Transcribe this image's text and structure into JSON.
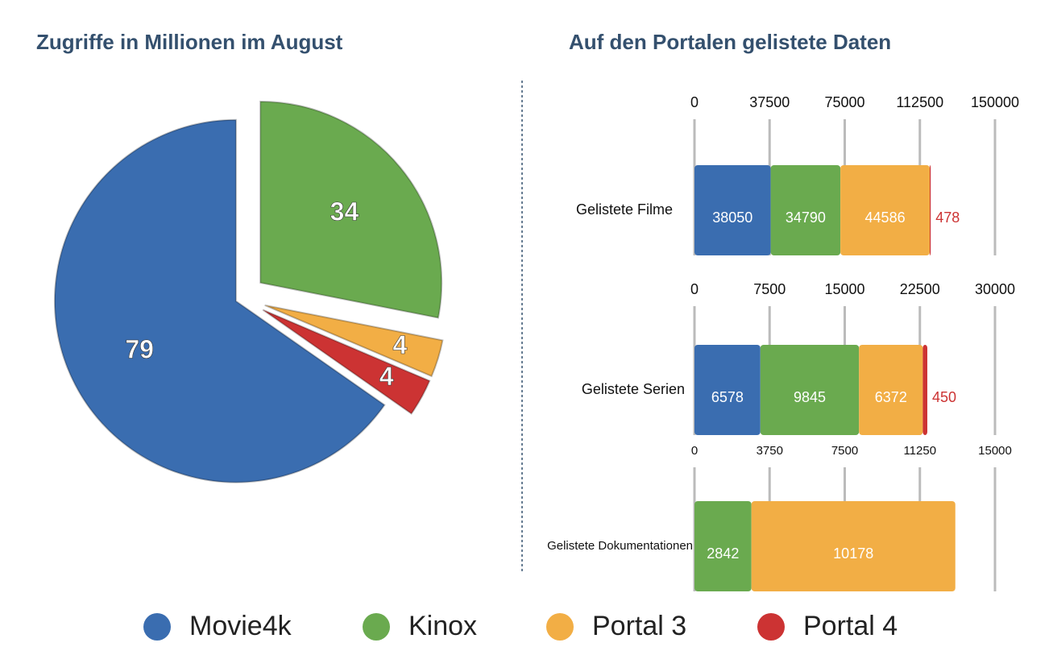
{
  "chart_data": [
    {
      "type": "pie",
      "title": "Zugriffe in Millionen im August",
      "categories": [
        "Movie4k",
        "Kinox",
        "Portal 3",
        "Portal 4"
      ],
      "values": [
        79,
        34,
        4,
        4
      ],
      "colors": [
        "#3a6db0",
        "#6aaa4f",
        "#f2ae45",
        "#cc3333"
      ]
    },
    {
      "type": "stacked-hbar",
      "title": "Auf den Portalen gelistete Daten",
      "categories": [
        "Gelistete Filme"
      ],
      "xlim": [
        0,
        150000
      ],
      "xticks": [
        0,
        37500,
        75000,
        112500,
        150000
      ],
      "series": [
        {
          "color": "#3a6db0",
          "values": [
            38050
          ]
        },
        {
          "color": "#6aaa4f",
          "values": [
            34790
          ]
        },
        {
          "color": "#f2ae45",
          "values": [
            44586
          ]
        },
        {
          "color": "#cc3333",
          "values": [
            478
          ]
        }
      ]
    },
    {
      "type": "stacked-hbar",
      "categories": [
        "Gelistete Serien"
      ],
      "xlim": [
        0,
        30000
      ],
      "xticks": [
        0,
        7500,
        15000,
        22500,
        30000
      ],
      "series": [
        {
          "color": "#3a6db0",
          "values": [
            6578
          ]
        },
        {
          "color": "#6aaa4f",
          "values": [
            9845
          ]
        },
        {
          "color": "#f2ae45",
          "values": [
            6372
          ]
        },
        {
          "color": "#cc3333",
          "values": [
            450
          ]
        }
      ]
    },
    {
      "type": "stacked-hbar",
      "categories": [
        "Gelistete Dokumentationen"
      ],
      "xlim": [
        0,
        15000
      ],
      "xticks": [
        0,
        3750,
        7500,
        11250,
        15000
      ],
      "series": [
        {
          "color": "#6aaa4f",
          "values": [
            2842
          ]
        },
        {
          "color": "#f2ae45",
          "values": [
            10178
          ]
        }
      ]
    }
  ]
}
